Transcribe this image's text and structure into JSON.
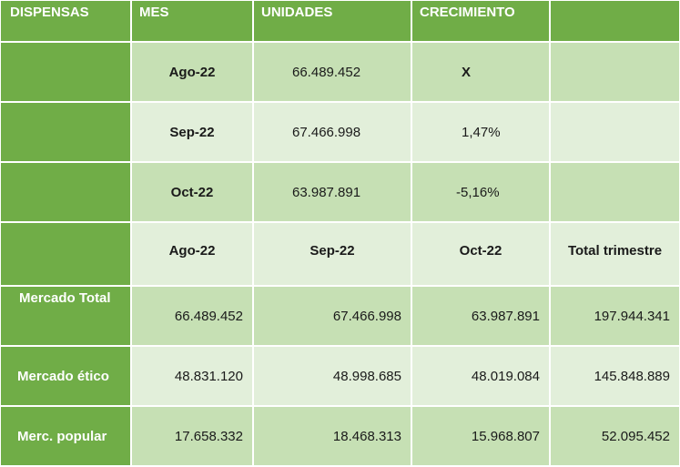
{
  "header": {
    "col0": "DISPENSAS",
    "col1": "MES",
    "col2": "UNIDADES",
    "col3": "CRECIMIENTO",
    "col4": ""
  },
  "monthly_rows": [
    {
      "mes": "Ago-22",
      "unidades": "66.489.452",
      "crecimiento": "X"
    },
    {
      "mes": "Sep-22",
      "unidades": "67.466.998",
      "crecimiento": "1,47%"
    },
    {
      "mes": "Oct-22",
      "unidades": "63.987.891",
      "crecimiento": "-5,16%"
    }
  ],
  "quarter_header": {
    "ago": "Ago-22",
    "sep": "Sep-22",
    "oct": "Oct-22",
    "total": "Total trimestre"
  },
  "market_rows": [
    {
      "label": "Mercado Total",
      "ago": "66.489.452",
      "sep": "67.466.998",
      "oct": "63.987.891",
      "total": "197.944.341"
    },
    {
      "label": "Mercado ético",
      "ago": "48.831.120",
      "sep": "48.998.685",
      "oct": "48.019.084",
      "total": "145.848.889"
    },
    {
      "label": "Merc. popular",
      "ago": "17.658.332",
      "sep": "18.468.313",
      "oct": "15.968.807",
      "total": "52.095.452"
    }
  ],
  "colors": {
    "header_green": "#70ad47",
    "dark_band": "#c6e0b4",
    "light_band": "#e2efda"
  }
}
